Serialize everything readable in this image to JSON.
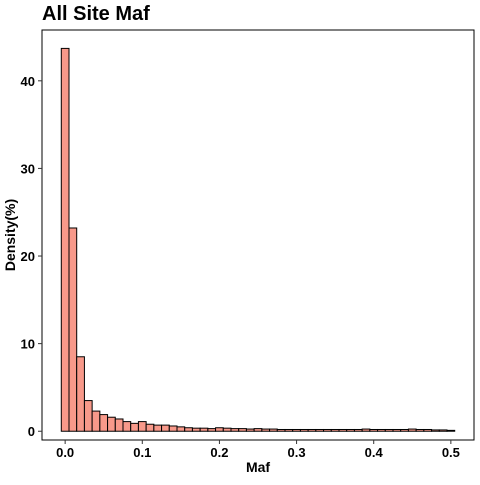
{
  "chart_data": {
    "type": "bar",
    "title": "All Site Maf",
    "xlabel": "Maf",
    "ylabel": "Density(%)",
    "xlim": [
      -0.03,
      0.53
    ],
    "ylim": [
      -1.0,
      45.8
    ],
    "x_ticks": [
      0.0,
      0.1,
      0.2,
      0.3,
      0.4,
      0.5
    ],
    "x_tick_labels": [
      "0.0",
      "0.1",
      "0.2",
      "0.3",
      "0.4",
      "0.5"
    ],
    "y_ticks": [
      0,
      10,
      20,
      30,
      40
    ],
    "y_tick_labels": [
      "0",
      "10",
      "20",
      "30",
      "40"
    ],
    "bin_width": 0.01,
    "bins_start": [
      -0.005,
      0.005,
      0.015,
      0.025,
      0.035,
      0.045,
      0.055,
      0.065,
      0.075,
      0.085,
      0.095,
      0.105,
      0.115,
      0.125,
      0.135,
      0.145,
      0.155,
      0.165,
      0.175,
      0.185,
      0.195,
      0.205,
      0.215,
      0.225,
      0.235,
      0.245,
      0.255,
      0.265,
      0.275,
      0.285,
      0.295,
      0.305,
      0.315,
      0.325,
      0.335,
      0.345,
      0.355,
      0.365,
      0.375,
      0.385,
      0.395,
      0.405,
      0.415,
      0.425,
      0.435,
      0.445,
      0.455,
      0.465,
      0.475,
      0.485,
      0.495
    ],
    "values": [
      43.7,
      23.2,
      8.5,
      3.5,
      2.3,
      1.9,
      1.6,
      1.4,
      1.1,
      0.9,
      1.1,
      0.8,
      0.7,
      0.7,
      0.6,
      0.5,
      0.4,
      0.35,
      0.35,
      0.3,
      0.4,
      0.35,
      0.3,
      0.3,
      0.25,
      0.3,
      0.25,
      0.25,
      0.2,
      0.2,
      0.2,
      0.2,
      0.2,
      0.2,
      0.2,
      0.2,
      0.2,
      0.2,
      0.2,
      0.25,
      0.2,
      0.2,
      0.2,
      0.2,
      0.2,
      0.25,
      0.2,
      0.2,
      0.15,
      0.15,
      0.1
    ],
    "bar_fill": "#f8998a",
    "bar_stroke": "#000000",
    "grid": false,
    "legend": "none"
  }
}
